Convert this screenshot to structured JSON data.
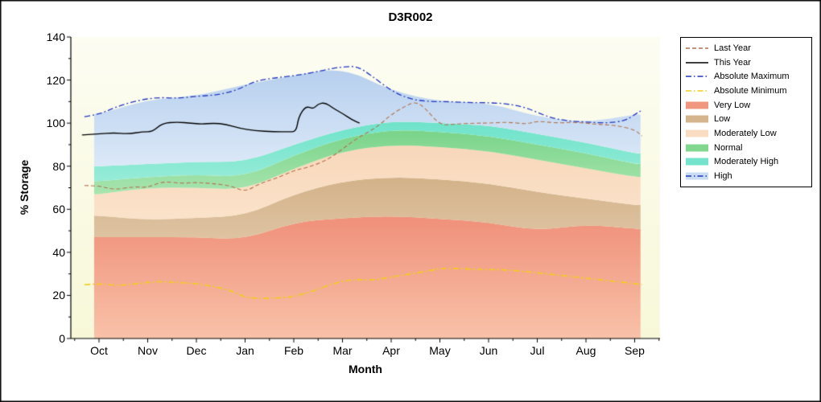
{
  "title": "D3R002",
  "axes": {
    "x_label": "Month",
    "y_label": "% Storage",
    "y_ticks": [
      0,
      20,
      40,
      60,
      80,
      100,
      120,
      140
    ]
  },
  "legend": {
    "items": [
      {
        "label": "Last Year",
        "marker": "line",
        "color": "#b3714d",
        "dash": "dash"
      },
      {
        "label": "This Year",
        "marker": "line",
        "color": "#000000",
        "dash": "solid"
      },
      {
        "label": "Absolute Maximum",
        "marker": "line",
        "color": "#2236c0",
        "dash": "dashdot"
      },
      {
        "label": "Absolute Minimum",
        "marker": "line",
        "color": "#f2ce1b",
        "dash": "dashdot"
      },
      {
        "label": "Very Low",
        "marker": "box",
        "color": "#f2977f"
      },
      {
        "label": "Low",
        "marker": "box",
        "color": "#d5b58d"
      },
      {
        "label": "Moderately Low",
        "marker": "box",
        "color": "#f9dcc1"
      },
      {
        "label": "Normal",
        "marker": "box",
        "color": "#80d78d"
      },
      {
        "label": "Moderately High",
        "marker": "box",
        "color": "#74e5cc"
      },
      {
        "label": "High",
        "marker": "line-box",
        "color": "#2236c0",
        "fill": "#c9dcf3",
        "dash": "dashdot"
      }
    ]
  },
  "chart_data": {
    "type": "area",
    "title": "D3R002",
    "xlabel": "Month",
    "ylabel": "% Storage",
    "ylim": [
      0,
      140
    ],
    "grid": false,
    "legend_position": "right",
    "categories": [
      "Oct",
      "Nov",
      "Dec",
      "Jan",
      "Feb",
      "Mar",
      "Apr",
      "May",
      "Jun",
      "Jul",
      "Aug",
      "Sep"
    ],
    "bands": [
      {
        "name": "Very Low",
        "top": [
          47,
          47,
          47,
          46,
          54,
          56,
          57,
          55.5,
          54,
          50,
          53,
          51
        ],
        "color_top": "#f0907a",
        "color_bottom": "#f9c2a9"
      },
      {
        "name": "Low",
        "top": [
          57,
          55,
          56,
          57,
          67,
          73,
          75,
          74,
          72,
          68,
          65,
          62
        ],
        "color_top": "#d3b289",
        "color_bottom": "#dfc4a3"
      },
      {
        "name": "Moderately Low",
        "top": [
          67,
          70,
          70,
          69,
          79,
          87,
          90,
          89,
          87,
          83,
          79,
          75
        ],
        "color_top": "#f8d7ba",
        "color_bottom": "#fbe3cb"
      },
      {
        "name": "Normal",
        "top": [
          73,
          75,
          76,
          75,
          85,
          93,
          97,
          96,
          94,
          90,
          86,
          81
        ],
        "color_top": "#79d489",
        "color_bottom": "#a9e5b0"
      },
      {
        "name": "Moderately High",
        "top": [
          80,
          81,
          82,
          82,
          90,
          97,
          101,
          100,
          99,
          95,
          91,
          86
        ],
        "color_top": "#6ee3ca",
        "color_bottom": "#97ecd8"
      },
      {
        "name": "High",
        "top": [
          104,
          111,
          112.5,
          118,
          122,
          126,
          115,
          110,
          109.5,
          103,
          100.3,
          104
        ],
        "color_top": "#b6cfee",
        "color_bottom": "#dce9f8"
      }
    ],
    "lines": [
      {
        "name": "Absolute Maximum",
        "color": "#2236c0",
        "dash": "dashdot",
        "width": 1.3,
        "x": [
          -0.3,
          0,
          0.4,
          0.8,
          1.2,
          1.6,
          2,
          2.4,
          2.8,
          3.2,
          3.6,
          4,
          4.4,
          4.8,
          5,
          5.3,
          5.6,
          6,
          6.4,
          6.8,
          7.2,
          7.6,
          8,
          8.4,
          8.8,
          9.2,
          9.6,
          10,
          10.4,
          10.8,
          11,
          11.15
        ],
        "values": [
          103,
          104,
          108,
          110.5,
          112,
          111.5,
          112.5,
          113,
          115,
          119.5,
          121,
          122,
          123.5,
          125.5,
          126,
          126.5,
          122,
          115,
          111,
          110,
          110,
          109.5,
          109.5,
          109,
          107,
          103,
          101,
          100.5,
          100,
          101,
          104,
          106
        ]
      },
      {
        "name": "Absolute Minimum",
        "color": "#f2ce1b",
        "dash": "dashdot",
        "width": 1.6,
        "x": [
          -0.3,
          0,
          0.4,
          0.8,
          1.2,
          1.6,
          2,
          2.4,
          2.8,
          3,
          3.4,
          3.8,
          4,
          4.4,
          4.8,
          5.2,
          5.6,
          6,
          6.4,
          6.8,
          7,
          7.4,
          7.8,
          8.2,
          8.6,
          9,
          9.4,
          9.8,
          10.2,
          10.6,
          11,
          11.15
        ],
        "values": [
          25,
          25.5,
          24.5,
          25.5,
          26.5,
          26,
          25.5,
          24,
          21.5,
          19,
          18.5,
          19,
          19.5,
          22,
          25.5,
          27.5,
          27,
          28.5,
          30,
          31.5,
          32.5,
          32.5,
          32,
          32,
          31.5,
          30.5,
          29.5,
          28.5,
          27.5,
          26.5,
          25.5,
          25
        ]
      },
      {
        "name": "Last Year",
        "color": "#b3714d",
        "dash": "dash",
        "width": 1.1,
        "x": [
          -0.3,
          0,
          0.3,
          0.7,
          1,
          1.3,
          1.7,
          2,
          2.3,
          2.7,
          3,
          3.3,
          3.6,
          4,
          4.3,
          4.7,
          5,
          5.3,
          5.7,
          6,
          6.3,
          6.5,
          6.7,
          7,
          7.3,
          7.7,
          8,
          8.4,
          8.8,
          9,
          9.4,
          9.8,
          10.2,
          10.6,
          11,
          11.15
        ],
        "values": [
          71,
          71,
          69,
          70.5,
          70,
          73,
          72,
          72.5,
          72,
          71,
          68,
          72,
          74,
          78,
          79.5,
          83,
          88,
          93,
          98,
          104,
          108,
          110,
          107,
          99,
          99.5,
          100,
          100,
          100.5,
          99.5,
          101,
          100,
          100.5,
          99.5,
          99,
          97,
          94
        ]
      },
      {
        "name": "This Year",
        "color": "#000000",
        "dash": "solid",
        "width": 1.4,
        "x": [
          -0.35,
          0,
          0.3,
          0.6,
          0.9,
          1.1,
          1.3,
          1.6,
          1.9,
          2.1,
          2.35,
          2.6,
          2.9,
          3.2,
          3.6,
          3.9,
          4.05,
          4.1,
          4.25,
          4.4,
          4.5,
          4.65,
          4.8,
          5,
          5.2,
          5.35
        ],
        "values": [
          94.5,
          95,
          95.5,
          95,
          96,
          96,
          100,
          100.5,
          100,
          99.5,
          100,
          99.5,
          97.5,
          96.5,
          96,
          96,
          96,
          103,
          108,
          106.5,
          109,
          109.5,
          107,
          104.5,
          101.5,
          100
        ]
      }
    ]
  }
}
